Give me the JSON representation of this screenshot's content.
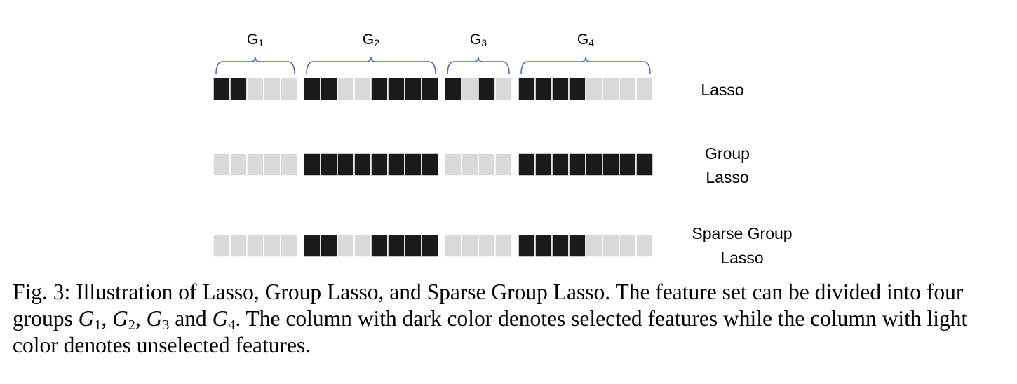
{
  "colors": {
    "selected": "#1a1a1a",
    "unselected": "#d9d9d9",
    "brace": "#4a6fa5"
  },
  "groups": [
    {
      "label": "G",
      "sub": "1",
      "size": 5
    },
    {
      "label": "G",
      "sub": "2",
      "size": 8
    },
    {
      "label": "G",
      "sub": "3",
      "size": 4
    },
    {
      "label": "G",
      "sub": "4",
      "size": 8
    }
  ],
  "rows": [
    {
      "label_lines": [
        "Lasso"
      ],
      "selection": [
        [
          1,
          1,
          0,
          0,
          0
        ],
        [
          1,
          1,
          0,
          0,
          1,
          1,
          1,
          1
        ],
        [
          1,
          0,
          1,
          0
        ],
        [
          1,
          1,
          1,
          1,
          0,
          0,
          0,
          0
        ]
      ]
    },
    {
      "label_lines": [
        "Group",
        "Lasso"
      ],
      "selection": [
        [
          0,
          0,
          0,
          0,
          0
        ],
        [
          1,
          1,
          1,
          1,
          1,
          1,
          1,
          1
        ],
        [
          0,
          0,
          0,
          0
        ],
        [
          1,
          1,
          1,
          1,
          1,
          1,
          1,
          1
        ]
      ]
    },
    {
      "label_lines": [
        "Sparse Group",
        "Lasso"
      ],
      "selection": [
        [
          0,
          0,
          0,
          0,
          0
        ],
        [
          1,
          1,
          0,
          0,
          1,
          1,
          1,
          1
        ],
        [
          0,
          0,
          0,
          0
        ],
        [
          1,
          1,
          1,
          1,
          0,
          0,
          0,
          0
        ]
      ]
    }
  ],
  "caption": {
    "prefix": "Fig. 3: Illustration of Lasso, Group Lasso, and Sparse Group Lasso. The feature set can be divided into four groups ",
    "sep1": ", ",
    "sep2": ", ",
    "sep3": " and ",
    "suffix": ". The column with dark color denotes selected features while the column with light color denotes unselected features.",
    "symbol": "G",
    "subs": [
      "1",
      "2",
      "3",
      "4"
    ]
  }
}
